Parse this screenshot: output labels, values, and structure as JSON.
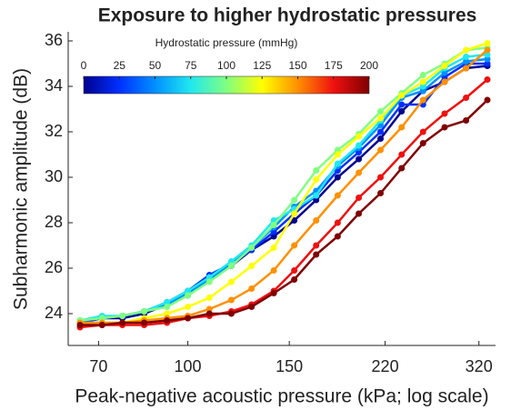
{
  "chart_data": {
    "type": "line",
    "title": "Exposure to higher hydrostatic pressures",
    "x_label": "Peak-negative acoustic pressure (kPa; log scale)",
    "y_label": "Subharmonic amplitude (dB)",
    "xscale": "log",
    "x": [
      65,
      71,
      77,
      84,
      92,
      100,
      109,
      119,
      129,
      141,
      153,
      167,
      182,
      198,
      216,
      235,
      256,
      279,
      304,
      331
    ],
    "xlim": [
      62,
      342
    ],
    "xticks": [
      70,
      100,
      150,
      220,
      320
    ],
    "ylim": [
      22.6,
      36.4
    ],
    "yticks": [
      24,
      26,
      28,
      30,
      32,
      34,
      36
    ],
    "colorbar": {
      "title": "Hydrostatic pressure (mmHg)",
      "lim": [
        0,
        200
      ],
      "ticks": [
        0,
        25,
        50,
        75,
        100,
        125,
        150,
        175,
        200
      ]
    },
    "series": [
      {
        "color": "#00008f",
        "values": [
          23.6,
          23.8,
          23.8,
          24.0,
          24.4,
          24.8,
          25.6,
          26.1,
          26.8,
          27.4,
          28.1,
          29.0,
          30.0,
          30.8,
          31.7,
          32.9,
          33.8,
          34.2,
          34.8,
          34.9
        ]
      },
      {
        "color": "#0030ff",
        "values": [
          23.6,
          23.8,
          23.9,
          24.1,
          24.5,
          25.0,
          25.7,
          26.2,
          26.8,
          27.6,
          28.4,
          29.2,
          30.3,
          31.1,
          32.0,
          33.2,
          33.2,
          34.4,
          35.0,
          35.0
        ]
      },
      {
        "color": "#0090ff",
        "values": [
          23.7,
          23.8,
          23.9,
          24.1,
          24.4,
          24.9,
          25.5,
          26.2,
          26.9,
          27.8,
          28.7,
          29.4,
          30.5,
          31.3,
          32.3,
          33.5,
          33.8,
          34.6,
          35.1,
          35.2
        ]
      },
      {
        "color": "#20e8f0",
        "values": [
          23.7,
          23.9,
          23.9,
          24.1,
          24.5,
          25.0,
          25.6,
          26.3,
          27.0,
          28.1,
          28.6,
          29.2,
          30.6,
          31.4,
          32.5,
          33.6,
          34.0,
          34.8,
          35.3,
          35.4
        ]
      },
      {
        "color": "#80ff80",
        "values": [
          23.7,
          23.8,
          23.9,
          24.1,
          24.3,
          24.8,
          25.4,
          26.1,
          26.9,
          27.9,
          29.0,
          30.3,
          31.2,
          31.9,
          32.9,
          33.7,
          34.5,
          35.0,
          35.6,
          35.7
        ]
      },
      {
        "color": "#ffff00",
        "values": [
          23.6,
          23.6,
          23.6,
          23.8,
          24.0,
          24.3,
          24.7,
          25.4,
          26.1,
          26.9,
          28.4,
          29.9,
          31.0,
          31.8,
          32.6,
          33.6,
          34.2,
          34.9,
          35.6,
          35.9
        ]
      },
      {
        "color": "#ff9000",
        "values": [
          23.6,
          23.6,
          23.6,
          23.7,
          23.8,
          23.9,
          24.2,
          24.6,
          25.1,
          25.9,
          27.0,
          28.1,
          29.2,
          30.2,
          31.2,
          32.2,
          33.4,
          34.2,
          34.8,
          35.6
        ]
      },
      {
        "color": "#f01010",
        "values": [
          23.4,
          23.5,
          23.5,
          23.5,
          23.6,
          23.8,
          23.9,
          24.1,
          24.4,
          25.0,
          25.9,
          27.0,
          28.0,
          29.1,
          30.0,
          31.0,
          32.0,
          32.8,
          33.5,
          34.3
        ]
      },
      {
        "color": "#800000",
        "values": [
          23.5,
          23.5,
          23.6,
          23.6,
          23.7,
          23.8,
          24.0,
          24.0,
          24.3,
          24.9,
          25.5,
          26.6,
          27.4,
          28.4,
          29.3,
          30.4,
          31.5,
          32.2,
          32.5,
          33.4
        ]
      }
    ]
  }
}
